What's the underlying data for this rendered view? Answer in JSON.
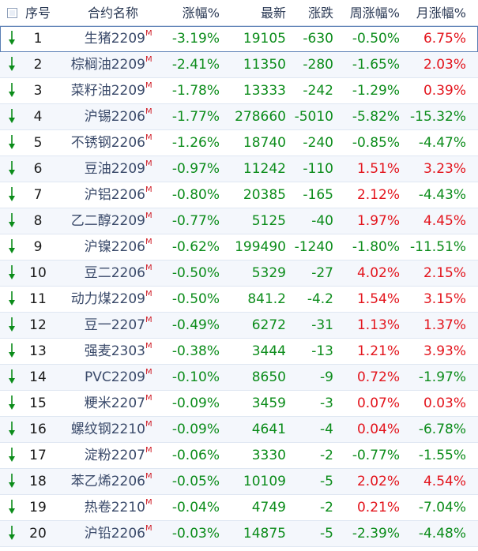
{
  "header": {
    "seq": "序号",
    "name": "合约名称",
    "pct": "涨幅%",
    "last": "最新",
    "chg": "涨跌",
    "week": "周涨幅%",
    "month": "月涨幅%"
  },
  "colors": {
    "up": "#e3141c",
    "down": "#0b8c1a",
    "mark": "#d0202a"
  },
  "rows": [
    {
      "n": "1",
      "name": "生猪2209",
      "m": "M",
      "pct": "-3.19%",
      "last": "19105",
      "chg": "-630",
      "week": "-0.50%",
      "month": "6.75%"
    },
    {
      "n": "2",
      "name": "棕榈油2209",
      "m": "M",
      "pct": "-2.41%",
      "last": "11350",
      "chg": "-280",
      "week": "-1.65%",
      "month": "2.03%"
    },
    {
      "n": "3",
      "name": "菜籽油2209",
      "m": "M",
      "pct": "-1.78%",
      "last": "13333",
      "chg": "-242",
      "week": "-1.29%",
      "month": "0.39%"
    },
    {
      "n": "4",
      "name": "沪锡2206",
      "m": "M",
      "pct": "-1.77%",
      "last": "278660",
      "chg": "-5010",
      "week": "-5.82%",
      "month": "-15.32%"
    },
    {
      "n": "5",
      "name": "不锈钢2206",
      "m": "M",
      "pct": "-1.26%",
      "last": "18740",
      "chg": "-240",
      "week": "-0.85%",
      "month": "-4.47%"
    },
    {
      "n": "6",
      "name": "豆油2209",
      "m": "M",
      "pct": "-0.97%",
      "last": "11242",
      "chg": "-110",
      "week": "1.51%",
      "month": "3.23%"
    },
    {
      "n": "7",
      "name": "沪铝2206",
      "m": "M",
      "pct": "-0.80%",
      "last": "20385",
      "chg": "-165",
      "week": "2.12%",
      "month": "-4.43%"
    },
    {
      "n": "8",
      "name": "乙二醇2209",
      "m": "M",
      "pct": "-0.77%",
      "last": "5125",
      "chg": "-40",
      "week": "1.97%",
      "month": "4.45%"
    },
    {
      "n": "9",
      "name": "沪镍2206",
      "m": "M",
      "pct": "-0.62%",
      "last": "199490",
      "chg": "-1240",
      "week": "-1.80%",
      "month": "-11.51%"
    },
    {
      "n": "10",
      "name": "豆二2206",
      "m": "M",
      "pct": "-0.50%",
      "last": "5329",
      "chg": "-27",
      "week": "4.02%",
      "month": "2.15%"
    },
    {
      "n": "11",
      "name": "动力煤2209",
      "m": "M",
      "pct": "-0.50%",
      "last": "841.2",
      "chg": "-4.2",
      "week": "1.54%",
      "month": "3.15%"
    },
    {
      "n": "12",
      "name": "豆一2207",
      "m": "M",
      "pct": "-0.49%",
      "last": "6272",
      "chg": "-31",
      "week": "1.13%",
      "month": "1.37%"
    },
    {
      "n": "13",
      "name": "强麦2303",
      "m": "M",
      "pct": "-0.38%",
      "last": "3444",
      "chg": "-13",
      "week": "1.21%",
      "month": "3.93%"
    },
    {
      "n": "14",
      "name": "PVC2209",
      "m": "M",
      "pct": "-0.10%",
      "last": "8650",
      "chg": "-9",
      "week": "0.72%",
      "month": "-1.97%"
    },
    {
      "n": "15",
      "name": "粳米2207",
      "m": "M",
      "pct": "-0.09%",
      "last": "3459",
      "chg": "-3",
      "week": "0.07%",
      "month": "0.03%"
    },
    {
      "n": "16",
      "name": "螺纹钢2210",
      "m": "M",
      "pct": "-0.09%",
      "last": "4641",
      "chg": "-4",
      "week": "0.04%",
      "month": "-6.78%"
    },
    {
      "n": "17",
      "name": "淀粉2207",
      "m": "M",
      "pct": "-0.06%",
      "last": "3330",
      "chg": "-2",
      "week": "-0.77%",
      "month": "-1.55%"
    },
    {
      "n": "18",
      "name": "苯乙烯2206",
      "m": "M",
      "pct": "-0.05%",
      "last": "10109",
      "chg": "-5",
      "week": "2.02%",
      "month": "4.54%"
    },
    {
      "n": "19",
      "name": "热卷2210",
      "m": "M",
      "pct": "-0.04%",
      "last": "4749",
      "chg": "-2",
      "week": "0.21%",
      "month": "-7.04%"
    },
    {
      "n": "20",
      "name": "沪铅2206",
      "m": "M",
      "pct": "-0.03%",
      "last": "14875",
      "chg": "-5",
      "week": "-2.39%",
      "month": "-4.48%"
    }
  ]
}
